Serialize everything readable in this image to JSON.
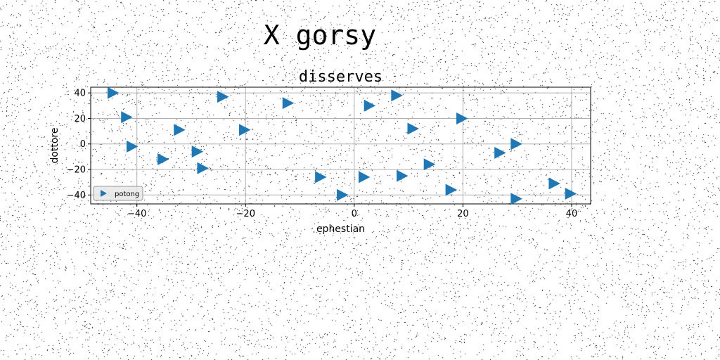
{
  "figure": {
    "suptitle": "X gorsy"
  },
  "chart_data": {
    "type": "scatter",
    "title": "disserves",
    "xlabel": "ephestian",
    "ylabel": "dottore",
    "xlim": [
      -48.5,
      43.5
    ],
    "ylim": [
      -47,
      44.5
    ],
    "xticks": [
      -40,
      -20,
      0,
      20,
      40
    ],
    "yticks": [
      -40,
      -20,
      0,
      20,
      40
    ],
    "grid": true,
    "legend_position": "lower-left",
    "marker": "triangle-right",
    "series": [
      {
        "name": "potong",
        "color": "#1f77b4",
        "x": [
          -44.5,
          -42,
          -32.3,
          -20.3,
          -24.3,
          -12.3,
          2.7,
          7.7,
          -41,
          -35.3,
          -29,
          -28,
          -6.3,
          -2.3,
          1.7,
          8.7,
          10.7,
          13.7,
          17.7,
          19.7,
          26.7,
          29.7,
          29.7,
          36.7,
          39.7
        ],
        "y": [
          40,
          21,
          11,
          11,
          37,
          32,
          30,
          38,
          -2,
          -12,
          -6,
          -19,
          -26,
          -40,
          -26,
          -25,
          12,
          -16,
          -36,
          20,
          -7,
          0,
          -43,
          -31,
          -39
        ]
      }
    ]
  }
}
